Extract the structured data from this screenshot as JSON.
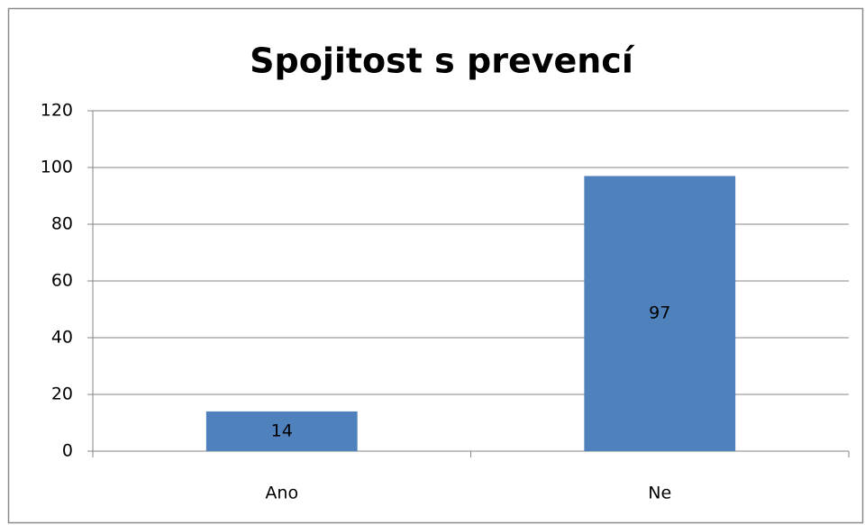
{
  "chart_data": {
    "type": "bar",
    "title": "Spojitost s prevencí",
    "categories": [
      "Ano",
      "Ne"
    ],
    "values": [
      14,
      97
    ],
    "color": "#4f81bd",
    "ylim": [
      0,
      120
    ],
    "yticks": [
      0,
      20,
      40,
      60,
      80,
      100,
      120
    ],
    "grid": true
  }
}
